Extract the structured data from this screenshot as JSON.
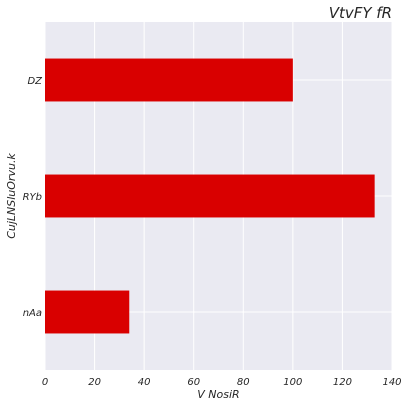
{
  "colors": {
    "bar": "#d90000",
    "plot_background": "#eaeaf2",
    "grid": "#ffffff"
  },
  "chart_data": {
    "type": "bar",
    "orientation": "horizontal",
    "title": "VtvFY fR",
    "xlabel": "V NosiR",
    "ylabel": "CujLNSluOrvu.k",
    "categories": [
      "DZ",
      "RYb",
      "nAa"
    ],
    "values": [
      100,
      133,
      34
    ],
    "xlim": [
      0,
      140
    ],
    "xticks": [
      0,
      20,
      40,
      60,
      80,
      100,
      120,
      140
    ],
    "grid": true,
    "legend": "none"
  }
}
